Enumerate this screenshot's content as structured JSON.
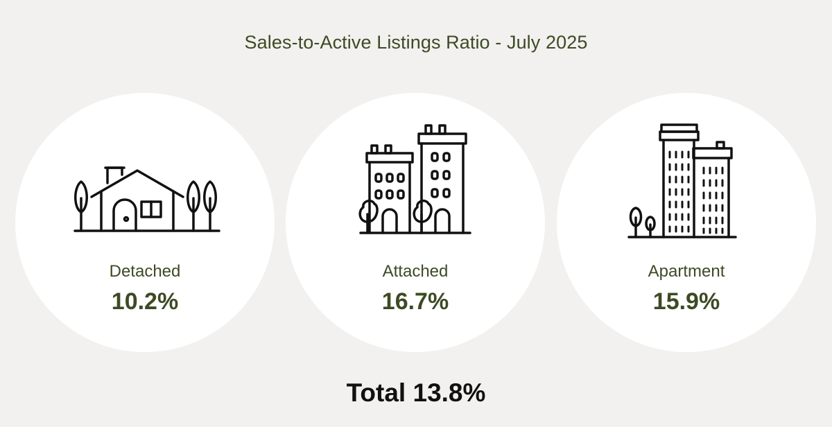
{
  "title": "Sales-to-Active Listings Ratio - July 2025",
  "categories": [
    {
      "label": "Detached",
      "value": "10.2%",
      "icon": "house-icon"
    },
    {
      "label": "Attached",
      "value": "16.7%",
      "icon": "townhouse-icon"
    },
    {
      "label": "Apartment",
      "value": "15.9%",
      "icon": "apartment-tower-icon"
    }
  ],
  "total": "Total 13.8%",
  "colors": {
    "background": "#f2f1ef",
    "accent_text": "#3d4a24",
    "circle_fill": "#ffffff",
    "total_text": "#111111"
  }
}
